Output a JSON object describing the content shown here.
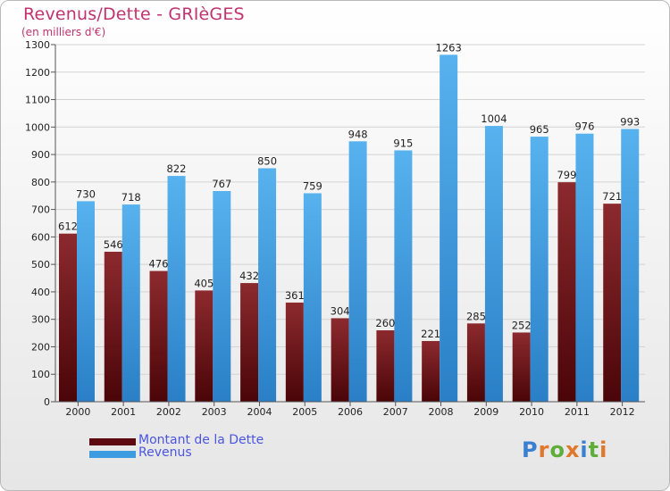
{
  "chart_data": {
    "type": "bar",
    "title": "Revenus/Dette - GRIèGES",
    "subtitle": "(en milliers d'€)",
    "categories": [
      "2000",
      "2001",
      "2002",
      "2003",
      "2004",
      "2005",
      "2006",
      "2007",
      "2008",
      "2009",
      "2010",
      "2011",
      "2012"
    ],
    "series": [
      {
        "name": "Montant de la Dette",
        "color": "#7a1a1e",
        "values": [
          612,
          546,
          476,
          405,
          432,
          361,
          304,
          260,
          221,
          285,
          252,
          799,
          721
        ]
      },
      {
        "name": "Revenus",
        "color": "#3d9be0",
        "values": [
          730,
          718,
          822,
          767,
          850,
          759,
          948,
          915,
          1263,
          1004,
          965,
          976,
          993
        ]
      }
    ],
    "ylim": [
      0,
      1300
    ],
    "yticks": [
      0,
      100,
      200,
      300,
      400,
      500,
      600,
      700,
      800,
      900,
      1000,
      1100,
      1200,
      1300
    ],
    "grid": true,
    "legend": "bottom-left"
  },
  "logo": {
    "text": "Proxiti",
    "letters": [
      {
        "ch": "P",
        "color": "#3a7fd0"
      },
      {
        "ch": "r",
        "color": "#e0782a"
      },
      {
        "ch": "o",
        "color": "#5fae3a"
      },
      {
        "ch": "x",
        "color": "#e0782a"
      },
      {
        "ch": "i",
        "color": "#3a7fd0"
      },
      {
        "ch": "t",
        "color": "#5fae3a"
      },
      {
        "ch": "i",
        "color": "#e0782a"
      }
    ]
  }
}
